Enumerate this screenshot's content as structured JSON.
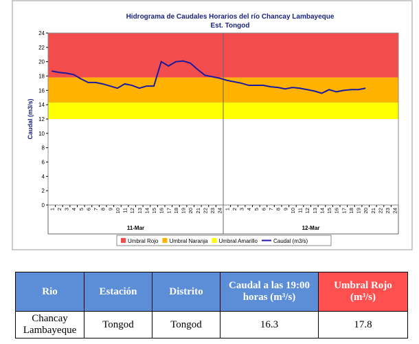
{
  "chart_data": {
    "type": "line",
    "title": "Hidrograma de Caudales Horarios del río Chancay Lambayeque",
    "subtitle": "Est. Tongod",
    "y_label": "Caudal (m3/s)",
    "categories": [
      "1",
      "2",
      "3",
      "4",
      "5",
      "6",
      "7",
      "8",
      "9",
      "10",
      "11",
      "12",
      "13",
      "14",
      "15",
      "16",
      "17",
      "18",
      "19",
      "20",
      "21",
      "22",
      "23",
      "24",
      "1",
      "2",
      "3",
      "4",
      "5",
      "6",
      "7",
      "8",
      "9",
      "10",
      "11",
      "12",
      "13",
      "14",
      "15",
      "16",
      "17",
      "18",
      "19",
      "20",
      "21",
      "22",
      "23",
      "24"
    ],
    "group_labels": [
      "11-Mar",
      "12-Mar"
    ],
    "ylim": [
      0,
      24
    ],
    "yticks": [
      0,
      2,
      4,
      6,
      8,
      10,
      12,
      14,
      16,
      18,
      20,
      22,
      24
    ],
    "bands": [
      {
        "name": "Umbral Rojo",
        "color": "#f24c4c",
        "from": 17.8,
        "to": 24
      },
      {
        "name": "Umbral Naranja",
        "color": "#ffb300",
        "from": 14.3,
        "to": 17.8
      },
      {
        "name": "Umbral Amarillo",
        "color": "#ffff00",
        "from": 12,
        "to": 14.3
      }
    ],
    "series": [
      {
        "name": "Caudal (m3/s)",
        "color": "#1a1aa0",
        "values": [
          18.7,
          18.5,
          18.4,
          18.2,
          17.6,
          17.1,
          17.1,
          16.9,
          16.6,
          16.3,
          16.9,
          16.7,
          16.3,
          16.6,
          16.6,
          20.0,
          19.4,
          20.0,
          20.1,
          19.8,
          18.9,
          18.1,
          17.9,
          17.7,
          17.4,
          17.2,
          17.0,
          16.7,
          16.7,
          16.7,
          16.5,
          16.4,
          16.2,
          16.4,
          16.3,
          16.1,
          15.9,
          15.6,
          16.1,
          15.8,
          16.0,
          16.1,
          16.1,
          16.3,
          null,
          null,
          null,
          null
        ]
      }
    ]
  },
  "table": {
    "header": [
      "Rio",
      "Estación",
      "Distrito",
      "Caudal a las 19:00 horas (m³/s)",
      "Umbral Rojo (m³/s)"
    ],
    "rows": [
      [
        "Chancay Lambayeque",
        "Tongod",
        "Tongod",
        16.3,
        17.8
      ]
    ]
  }
}
